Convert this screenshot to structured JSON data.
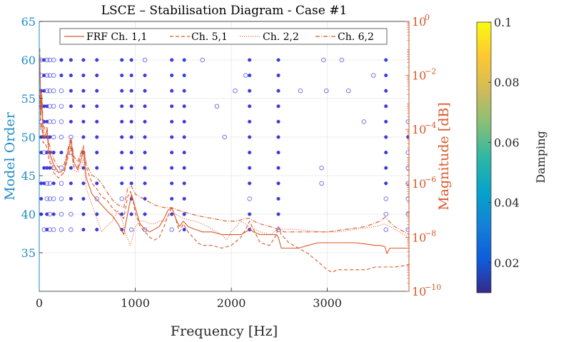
{
  "chart_data": {
    "type": "scatter",
    "title": "LSCE – Stabilisation Diagram - Case #1",
    "xlabel": "Frequency [Hz]",
    "ylabel_left": "Model Order",
    "ylabel_right": "Magnitude [dB]",
    "colorbar_label": "Damping",
    "xlim": [
      0,
      3850
    ],
    "ylim_left": [
      30,
      65
    ],
    "ylim_right_exp": [
      -10,
      0
    ],
    "x_ticks": [
      0,
      1000,
      2000,
      3000
    ],
    "x_tick_labels": [
      "0",
      "1000",
      "2000",
      "3000"
    ],
    "y_left_ticks": [
      35,
      40,
      45,
      50,
      55,
      60,
      65
    ],
    "y_left_tick_labels": [
      "35",
      "40",
      "45",
      "50",
      "55",
      "60",
      "65"
    ],
    "y_right_ticks": [
      0,
      -2,
      -4,
      -6,
      -8,
      -10
    ],
    "y_right_tick_labels": [
      "10",
      "10",
      "10",
      "10",
      "10",
      "10"
    ],
    "y_right_tick_exps": [
      "0",
      "−2",
      "−4",
      "−6",
      "−8",
      "−10"
    ],
    "colorbar_range": [
      0.01,
      0.1
    ],
    "colorbar_ticks": [
      0.02,
      0.04,
      0.06,
      0.08,
      0.1
    ],
    "colorbar_tick_labels": [
      "0.02",
      "0.04",
      "0.06",
      "0.08",
      "0.1"
    ],
    "legend": {
      "placement": "top-center",
      "entries": [
        "FRF Ch. 1,1",
        "Ch. 5,1",
        "Ch. 2,2",
        "Ch. 6,2"
      ]
    },
    "pole_marker_note": "filled = stable pole, open = unstable pole",
    "columns": [
      {
        "f": 20,
        "stable": [
          40,
          42,
          44,
          48,
          50,
          54,
          56
        ],
        "unstable": [
          52,
          58,
          60
        ]
      },
      {
        "f": 50,
        "stable": [
          44,
          46,
          50,
          52,
          54,
          56,
          58,
          60
        ],
        "unstable": [
          38,
          48
        ]
      },
      {
        "f": 80,
        "stable": [
          38,
          40,
          46,
          48,
          50,
          52,
          54
        ],
        "unstable": [
          42,
          44,
          56,
          58,
          60
        ]
      },
      {
        "f": 110,
        "stable": [
          46,
          48,
          50
        ],
        "unstable": [
          38,
          40,
          42,
          44,
          52,
          54,
          56,
          58,
          60
        ]
      },
      {
        "f": 150,
        "stable": [
          40,
          44,
          48
        ],
        "unstable": [
          38,
          42,
          46,
          50,
          52,
          54,
          56,
          58,
          60
        ]
      },
      {
        "f": 230,
        "stable": [
          48,
          58,
          60
        ],
        "unstable": [
          38,
          40,
          42,
          44,
          46,
          50,
          52,
          54,
          56
        ]
      },
      {
        "f": 330,
        "stable": [
          42,
          44,
          46,
          52,
          54,
          56,
          58,
          60
        ],
        "unstable": [
          38,
          40,
          48,
          50
        ]
      },
      {
        "f": 460,
        "stable": [
          38,
          40,
          42,
          44,
          46,
          48,
          50,
          52,
          54,
          56,
          58,
          60
        ],
        "unstable": []
      },
      {
        "f": 600,
        "stable": [
          38,
          40,
          44,
          46,
          48,
          50,
          52,
          54,
          56,
          58,
          60
        ],
        "unstable": [
          42
        ]
      },
      {
        "f": 860,
        "stable": [
          38,
          40,
          44,
          46,
          48,
          50,
          52,
          54,
          56,
          58,
          60
        ],
        "unstable": [
          42
        ]
      },
      {
        "f": 960,
        "stable": [
          40,
          42,
          44,
          46,
          48,
          50,
          52,
          54,
          56,
          58,
          60
        ],
        "unstable": [
          38
        ]
      },
      {
        "f": 1100,
        "stable": [
          40,
          42,
          44,
          46,
          48,
          50,
          52,
          54,
          56,
          58
        ],
        "unstable": [
          38,
          60
        ]
      },
      {
        "f": 1380,
        "stable": [
          40,
          42,
          44,
          46,
          48,
          50,
          52,
          54,
          56,
          58,
          60
        ],
        "unstable": [
          38
        ]
      },
      {
        "f": 1510,
        "stable": [
          38,
          40,
          42,
          44,
          46,
          48,
          50,
          52,
          54,
          56,
          58,
          60
        ],
        "unstable": []
      },
      {
        "f": 1700,
        "stable": [],
        "unstable": [
          60
        ]
      },
      {
        "f": 1850,
        "stable": [],
        "unstable": [
          54
        ]
      },
      {
        "f": 1930,
        "stable": [],
        "unstable": [
          50
        ]
      },
      {
        "f": 2040,
        "stable": [],
        "unstable": [
          56
        ]
      },
      {
        "f": 2150,
        "stable": [],
        "unstable": [
          58
        ]
      },
      {
        "f": 2190,
        "stable": [
          38,
          40,
          44,
          46,
          48,
          50,
          52,
          54,
          56,
          58,
          60
        ],
        "unstable": [
          42
        ]
      },
      {
        "f": 2490,
        "stable": [
          40,
          42,
          44,
          46,
          48,
          50,
          52,
          54,
          56,
          58,
          60
        ],
        "unstable": [
          38
        ]
      },
      {
        "f": 2720,
        "stable": [],
        "unstable": [
          56
        ]
      },
      {
        "f": 2940,
        "stable": [],
        "unstable": [
          44,
          46
        ]
      },
      {
        "f": 2960,
        "stable": [],
        "unstable": [
          60
        ]
      },
      {
        "f": 2990,
        "stable": [],
        "unstable": [
          56
        ]
      },
      {
        "f": 3150,
        "stable": [],
        "unstable": [
          60
        ]
      },
      {
        "f": 3220,
        "stable": [],
        "unstable": [
          56
        ]
      },
      {
        "f": 3380,
        "stable": [],
        "unstable": [
          52
        ]
      },
      {
        "f": 3480,
        "stable": [],
        "unstable": [
          58
        ]
      },
      {
        "f": 3610,
        "stable": [
          44,
          46,
          48,
          50,
          52,
          54,
          56,
          58,
          60
        ],
        "unstable": [
          38,
          40,
          42
        ]
      },
      {
        "f": 3840,
        "stable": [
          50
        ],
        "unstable": [
          38,
          40,
          42,
          44,
          46,
          48,
          52
        ]
      }
    ],
    "series": [
      {
        "name": "FRF Ch. 1,1",
        "style": "solid",
        "x": [
          5,
          15,
          25,
          40,
          60,
          80,
          100,
          150,
          200,
          260,
          300,
          330,
          360,
          400,
          430,
          460,
          490,
          550,
          600,
          650,
          700,
          760,
          820,
          880,
          900,
          960,
          1000,
          1050,
          1100,
          1150,
          1200,
          1250,
          1300,
          1340,
          1380,
          1420,
          1460,
          1500,
          1550,
          1620,
          1700,
          1800,
          1900,
          2000,
          2100,
          2150,
          2190,
          2230,
          2300,
          2400,
          2470,
          2490,
          2520,
          2600,
          2700,
          2800,
          2900,
          3000,
          3100,
          3200,
          3300,
          3400,
          3500,
          3550,
          3600,
          3620,
          3650,
          3700,
          3750,
          3800,
          3850
        ],
        "y": [
          -1.2,
          -3.5,
          -2.8,
          -4.2,
          -4.3,
          -4.0,
          -4.8,
          -5.3,
          -5.6,
          -5.5,
          -4.8,
          -4.4,
          -5.2,
          -5.5,
          -5.2,
          -4.8,
          -5.8,
          -6.4,
          -6.6,
          -6.8,
          -7.0,
          -7.2,
          -7.5,
          -7.9,
          -7.5,
          -6.4,
          -6.9,
          -7.5,
          -7.7,
          -7.8,
          -7.7,
          -7.6,
          -7.3,
          -7.0,
          -6.9,
          -7.3,
          -7.6,
          -7.4,
          -7.6,
          -7.7,
          -7.8,
          -7.8,
          -7.9,
          -7.9,
          -7.9,
          -7.8,
          -7.7,
          -7.8,
          -7.9,
          -7.9,
          -7.9,
          -8.0,
          -8.4,
          -8.4,
          -8.4,
          -8.3,
          -8.2,
          -8.2,
          -8.2,
          -8.2,
          -8.2,
          -8.25,
          -8.3,
          -8.3,
          -8.35,
          -8.6,
          -8.4,
          -8.4,
          -8.4,
          -8.4,
          -8.4
        ]
      },
      {
        "name": "Ch. 5,1",
        "style": "dashed",
        "x": [
          5,
          15,
          25,
          40,
          60,
          80,
          100,
          150,
          200,
          260,
          300,
          330,
          360,
          400,
          430,
          460,
          490,
          550,
          600,
          650,
          700,
          760,
          820,
          880,
          920,
          950,
          980,
          1000,
          1050,
          1100,
          1150,
          1200,
          1250,
          1300,
          1340,
          1380,
          1420,
          1460,
          1500,
          1550,
          1600,
          1650,
          1700,
          1800,
          1900,
          2000,
          2100,
          2150,
          2190,
          2230,
          2300,
          2400,
          2470,
          2490,
          2520,
          2600,
          2700,
          2800,
          2900,
          3000,
          3050,
          3100,
          3200,
          3300,
          3400,
          3500,
          3600,
          3700,
          3800,
          3850
        ],
        "y": [
          -2.5,
          -4.0,
          -3.8,
          -4.5,
          -4.5,
          -4.7,
          -5.1,
          -5.6,
          -5.8,
          -5.6,
          -5.0,
          -4.6,
          -5.4,
          -5.4,
          -5.0,
          -4.7,
          -5.4,
          -6.0,
          -6.2,
          -6.5,
          -6.6,
          -6.9,
          -7.1,
          -7.3,
          -6.5,
          -6.3,
          -6.7,
          -7.1,
          -7.6,
          -7.8,
          -8.0,
          -8.1,
          -8.0,
          -7.6,
          -7.2,
          -6.9,
          -7.3,
          -7.8,
          -7.5,
          -7.8,
          -8.0,
          -8.2,
          -8.3,
          -8.3,
          -8.4,
          -8.3,
          -8.0,
          -7.7,
          -7.4,
          -7.7,
          -8.2,
          -8.3,
          -7.9,
          -7.6,
          -7.9,
          -8.2,
          -8.4,
          -8.6,
          -8.9,
          -9.2,
          -9.3,
          -9.2,
          -9.2,
          -9.2,
          -9.2,
          -9.1,
          -9.1,
          -9.1,
          -9.05,
          -9.0
        ]
      },
      {
        "name": "Ch. 2,2",
        "style": "dotted",
        "x": [
          5,
          15,
          25,
          40,
          60,
          80,
          100,
          150,
          200,
          260,
          300,
          330,
          360,
          400,
          430,
          460,
          490,
          550,
          600,
          650,
          700,
          760,
          820,
          860,
          900,
          950,
          1000,
          1050,
          1100,
          1150,
          1200,
          1250,
          1300,
          1350,
          1400,
          1450,
          1500,
          1550,
          1620,
          1700,
          1800,
          1900,
          1950,
          2000,
          2050,
          2100,
          2190,
          2300,
          2400,
          2490,
          2550,
          2650,
          2800,
          2950,
          3100,
          3300,
          3500,
          3600,
          3700,
          3800,
          3850
        ],
        "y": [
          -1.5,
          -3.6,
          -3.0,
          -4.0,
          -4.2,
          -4.3,
          -4.9,
          -5.5,
          -5.6,
          -5.6,
          -5.0,
          -4.7,
          -5.5,
          -5.6,
          -5.4,
          -5.1,
          -6.2,
          -6.8,
          -7.3,
          -7.8,
          -7.6,
          -7.4,
          -7.0,
          -7.3,
          -7.9,
          -8.3,
          -7.6,
          -7.4,
          -7.4,
          -7.5,
          -7.5,
          -7.4,
          -7.4,
          -7.2,
          -7.1,
          -7.2,
          -7.3,
          -7.35,
          -7.4,
          -7.5,
          -7.7,
          -7.9,
          -8.1,
          -7.8,
          -7.6,
          -7.4,
          -7.6,
          -7.8,
          -7.9,
          -7.7,
          -7.7,
          -7.7,
          -7.75,
          -7.8,
          -7.8,
          -7.7,
          -7.6,
          -7.5,
          -7.7,
          -7.9,
          -8.0
        ]
      },
      {
        "name": "Ch. 6,2",
        "style": "dashdot",
        "x": [
          5,
          15,
          25,
          40,
          60,
          80,
          100,
          150,
          200,
          260,
          300,
          330,
          360,
          400,
          430,
          460,
          490,
          550,
          600,
          650,
          700,
          760,
          820,
          880,
          920,
          960,
          1000,
          1100,
          1200,
          1300,
          1380,
          1450,
          1550,
          1650,
          1800,
          1950,
          2050,
          2150,
          2190,
          2230,
          2300,
          2400,
          2490,
          2550,
          2650,
          2800,
          3000,
          3200,
          3400,
          3550,
          3600,
          3640,
          3700,
          3800,
          3850
        ],
        "y": [
          -1.0,
          -3.2,
          -2.6,
          -3.8,
          -4.0,
          -3.9,
          -4.5,
          -5.1,
          -5.4,
          -5.3,
          -4.7,
          -4.3,
          -5.0,
          -5.2,
          -4.9,
          -4.6,
          -5.3,
          -5.7,
          -5.8,
          -6.0,
          -6.3,
          -6.6,
          -6.8,
          -6.9,
          -6.2,
          -6.1,
          -6.4,
          -6.6,
          -6.8,
          -6.9,
          -6.9,
          -7.0,
          -7.1,
          -7.2,
          -7.3,
          -7.4,
          -7.4,
          -7.3,
          -7.3,
          -7.4,
          -7.5,
          -7.6,
          -7.7,
          -7.8,
          -7.8,
          -7.8,
          -7.8,
          -7.7,
          -7.6,
          -7.4,
          -7.25,
          -7.4,
          -7.6,
          -7.8,
          -7.9
        ]
      }
    ]
  },
  "colors": {
    "left_axis": "#1f8dc6",
    "right_axis": "#d9592b",
    "frf_line": "#d9592b",
    "stable_pole": "#3b3be0",
    "unstable_pole": "#5a5ae6"
  }
}
